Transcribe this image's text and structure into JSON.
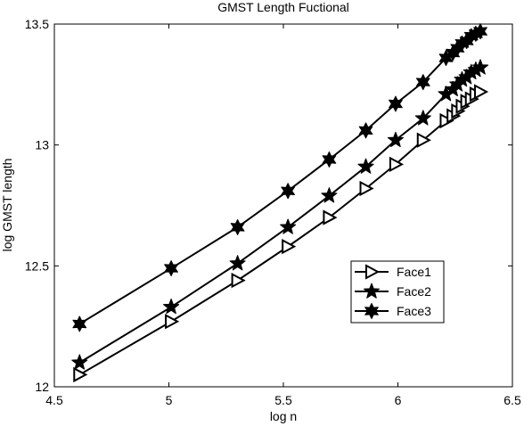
{
  "chart_data": {
    "type": "line",
    "title": "GMST Length Fuctional",
    "xlabel": "log n",
    "ylabel": "log GMST length",
    "xlim": [
      4.5,
      6.5
    ],
    "ylim": [
      12,
      13.5
    ],
    "xticks": [
      4.5,
      5,
      5.5,
      6,
      6.5
    ],
    "xtick_labels": [
      "4.5",
      "5",
      "5.5",
      "6",
      "6.5"
    ],
    "yticks": [
      12,
      12.5,
      13,
      13.5
    ],
    "ytick_labels": [
      "12",
      "12.5",
      "13",
      "13.5"
    ],
    "grid": false,
    "legend_position": "center-right",
    "line_color": "#000000",
    "series": [
      {
        "name": "Face1",
        "marker": "triangle-right",
        "x": [
          4.61,
          5.01,
          5.3,
          5.52,
          5.7,
          5.86,
          5.99,
          6.11,
          6.21,
          6.24,
          6.26,
          6.28,
          6.3,
          6.32,
          6.34,
          6.36
        ],
        "y": [
          12.05,
          12.27,
          12.44,
          12.58,
          12.7,
          12.82,
          12.92,
          13.02,
          13.1,
          13.12,
          13.14,
          13.16,
          13.18,
          13.19,
          13.21,
          13.22
        ]
      },
      {
        "name": "Face2",
        "marker": "star5",
        "x": [
          4.61,
          5.01,
          5.3,
          5.52,
          5.7,
          5.86,
          5.99,
          6.11,
          6.21,
          6.24,
          6.26,
          6.28,
          6.3,
          6.32,
          6.34,
          6.36
        ],
        "y": [
          12.1,
          12.33,
          12.51,
          12.66,
          12.79,
          12.91,
          13.02,
          13.11,
          13.21,
          13.23,
          13.25,
          13.27,
          13.28,
          13.3,
          13.31,
          13.32
        ]
      },
      {
        "name": "Face3",
        "marker": "star6",
        "x": [
          4.61,
          5.01,
          5.3,
          5.52,
          5.7,
          5.86,
          5.99,
          6.11,
          6.21,
          6.24,
          6.26,
          6.28,
          6.3,
          6.32,
          6.34,
          6.36
        ],
        "y": [
          12.26,
          12.49,
          12.66,
          12.81,
          12.94,
          13.06,
          13.17,
          13.26,
          13.36,
          13.38,
          13.4,
          13.42,
          13.43,
          13.45,
          13.46,
          13.47
        ]
      }
    ]
  }
}
